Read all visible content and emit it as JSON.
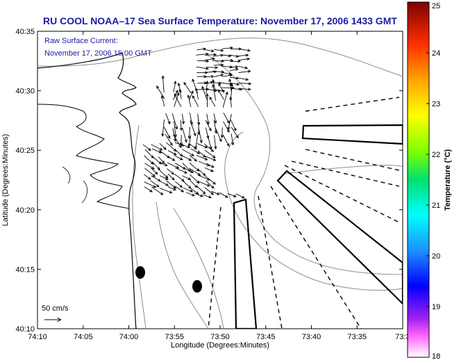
{
  "title": "RU COOL  NOAA–17  Sea Surface Temperature:  November 17, 2006 1433 GMT",
  "current_note": {
    "line1": "Raw Surface Current:",
    "line2": "November 17, 2006 15:00 GMT"
  },
  "scale_label": "50 cm/s",
  "xlabel": "Longitude (Degrees:Minutes)",
  "ylabel": "Latitude (Degrees:Minutes)",
  "x_ticks": [
    "74:10",
    "74:05",
    "74:00",
    "73:55",
    "73:50",
    "73:45",
    "73:40",
    "73:35",
    "73:3"
  ],
  "y_ticks": [
    "40:35",
    "40:30",
    "40:25",
    "40:20",
    "40:15",
    "40:10"
  ],
  "colorbar": {
    "label": "Temperature (°C)",
    "ticks": [
      "25",
      "24",
      "23",
      "22",
      "21",
      "20",
      "19",
      "18"
    ],
    "min": 18,
    "max": 25
  },
  "colors": {
    "text_blue": "#1a1aa6",
    "coast": "#000000",
    "bathymetry": "#8c8c8c"
  }
}
